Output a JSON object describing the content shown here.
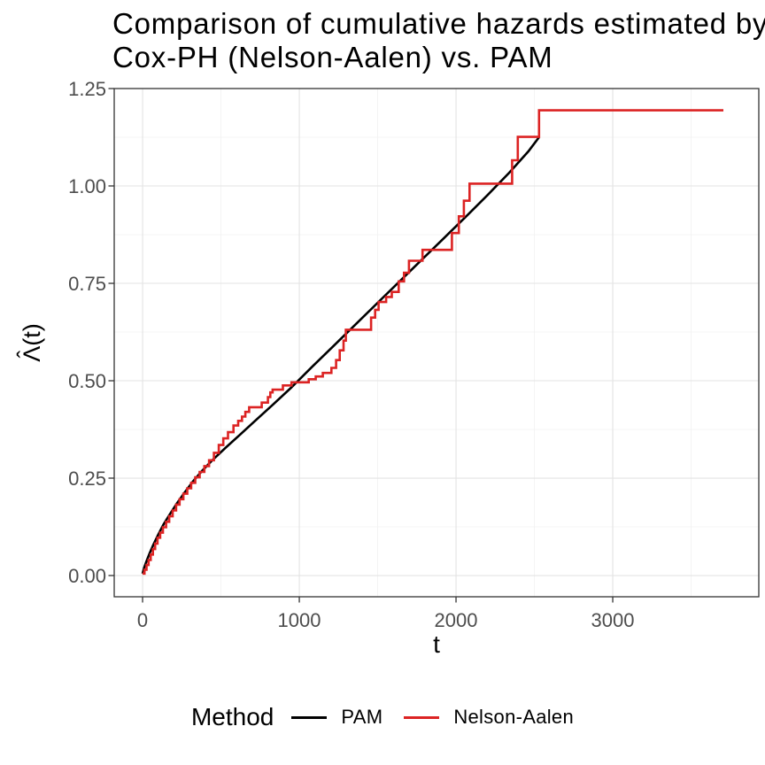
{
  "title": {
    "line1": "Comparison of cumulative hazards estimated by",
    "line2": "Cox-PH (Nelson-Aalen) vs. PAM"
  },
  "legend": {
    "title": "Method",
    "items": [
      {
        "label": "PAM",
        "color": "#000000"
      },
      {
        "label": "Nelson-Aalen",
        "color": "#DC2323"
      }
    ]
  },
  "colors": {
    "panel_background": "#FFFFFF",
    "panel_border": "#333333",
    "grid_major": "#E3E3E3",
    "grid_minor": "#F0F0F0",
    "tick_mark": "#333333",
    "tick_label": "#4D4D4D",
    "axis_title": "#000000"
  },
  "chart_data": {
    "type": "line",
    "title": "Comparison of cumulative hazards estimated by Cox-PH (Nelson-Aalen) vs. PAM",
    "xlabel": "t",
    "ylabel": "Λ̂(t)",
    "xlim": [
      -181,
      3932
    ],
    "ylim": [
      -0.0545,
      1.25
    ],
    "x_ticks": [
      0,
      1000,
      2000,
      3000
    ],
    "x_minor_ticks": [
      500,
      1500,
      2500,
      3500
    ],
    "y_ticks": [
      0,
      0.25,
      0.5,
      0.75,
      1.0,
      1.25
    ],
    "y_tick_labels": [
      "0.00",
      "0.25",
      "0.50",
      "0.75",
      "1.00",
      "1.25"
    ],
    "y_minor_ticks": [
      0.125,
      0.375,
      0.625,
      0.875,
      1.125
    ],
    "grid": true,
    "legend_position": "bottom",
    "series": [
      {
        "name": "PAM",
        "color": "#000000",
        "line_type": "smooth",
        "points": [
          [
            0,
            0.005
          ],
          [
            10,
            0.02
          ],
          [
            25,
            0.037
          ],
          [
            45,
            0.057
          ],
          [
            70,
            0.08
          ],
          [
            100,
            0.105
          ],
          [
            135,
            0.132
          ],
          [
            175,
            0.158
          ],
          [
            220,
            0.186
          ],
          [
            270,
            0.214
          ],
          [
            320,
            0.241
          ],
          [
            380,
            0.269
          ],
          [
            450,
            0.298
          ],
          [
            530,
            0.328
          ],
          [
            620,
            0.361
          ],
          [
            720,
            0.398
          ],
          [
            830,
            0.438
          ],
          [
            950,
            0.483
          ],
          [
            1080,
            0.535
          ],
          [
            1220,
            0.59
          ],
          [
            1360,
            0.645
          ],
          [
            1500,
            0.7
          ],
          [
            1640,
            0.755
          ],
          [
            1780,
            0.81
          ],
          [
            1920,
            0.865
          ],
          [
            2060,
            0.92
          ],
          [
            2200,
            0.976
          ],
          [
            2340,
            1.034
          ],
          [
            2460,
            1.088
          ],
          [
            2530,
            1.125
          ]
        ]
      },
      {
        "name": "Nelson-Aalen",
        "color": "#DC2323",
        "line_type": "step-after",
        "points": [
          [
            0,
            0.005
          ],
          [
            12,
            0.015
          ],
          [
            25,
            0.027
          ],
          [
            38,
            0.04
          ],
          [
            52,
            0.054
          ],
          [
            66,
            0.068
          ],
          [
            80,
            0.082
          ],
          [
            95,
            0.097
          ],
          [
            112,
            0.11
          ],
          [
            130,
            0.124
          ],
          [
            150,
            0.138
          ],
          [
            170,
            0.152
          ],
          [
            192,
            0.167
          ],
          [
            214,
            0.182
          ],
          [
            236,
            0.196
          ],
          [
            260,
            0.21
          ],
          [
            285,
            0.224
          ],
          [
            310,
            0.238
          ],
          [
            336,
            0.252
          ],
          [
            364,
            0.266
          ],
          [
            394,
            0.281
          ],
          [
            424,
            0.296
          ],
          [
            455,
            0.315
          ],
          [
            486,
            0.335
          ],
          [
            515,
            0.352
          ],
          [
            545,
            0.368
          ],
          [
            580,
            0.385
          ],
          [
            610,
            0.397
          ],
          [
            634,
            0.408
          ],
          [
            656,
            0.42
          ],
          [
            680,
            0.432
          ],
          [
            760,
            0.444
          ],
          [
            800,
            0.458
          ],
          [
            815,
            0.47
          ],
          [
            830,
            0.477
          ],
          [
            895,
            0.488
          ],
          [
            950,
            0.496
          ],
          [
            1060,
            0.504
          ],
          [
            1105,
            0.511
          ],
          [
            1150,
            0.52
          ],
          [
            1205,
            0.533
          ],
          [
            1235,
            0.553
          ],
          [
            1258,
            0.578
          ],
          [
            1282,
            0.603
          ],
          [
            1297,
            0.631
          ],
          [
            1458,
            0.662
          ],
          [
            1484,
            0.682
          ],
          [
            1506,
            0.702
          ],
          [
            1554,
            0.715
          ],
          [
            1590,
            0.728
          ],
          [
            1634,
            0.755
          ],
          [
            1668,
            0.777
          ],
          [
            1700,
            0.808
          ],
          [
            1786,
            0.836
          ],
          [
            1974,
            0.879
          ],
          [
            2018,
            0.922
          ],
          [
            2050,
            0.962
          ],
          [
            2086,
            1.006
          ],
          [
            2358,
            1.066
          ],
          [
            2394,
            1.126
          ],
          [
            2530,
            1.194
          ],
          [
            3706,
            1.194
          ]
        ]
      }
    ]
  }
}
